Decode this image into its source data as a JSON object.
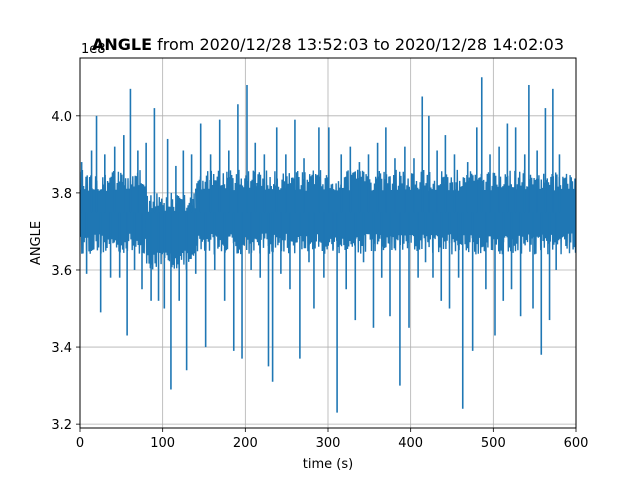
{
  "chart_data": {
    "type": "line",
    "title": {
      "bold": "ANGLE",
      "rest": " from 2020/12/28 13:52:03 to 2020/12/28 14:02:03"
    },
    "xlabel": "time (s)",
    "ylabel": "ANGLE",
    "offset_label": "1e8",
    "xlim": [
      0,
      600
    ],
    "ylim": [
      3.19,
      4.15
    ],
    "xticks": [
      0,
      100,
      200,
      300,
      400,
      500,
      600
    ],
    "yticks": [
      3.2,
      3.4,
      3.6,
      3.8,
      4.0
    ],
    "ytick_labels": [
      "3.2",
      "3.4",
      "3.6",
      "3.8",
      "4.0"
    ],
    "grid": true,
    "series_color": "#1f77b4",
    "band": {
      "segments": [
        {
          "x_start": 0,
          "x_end": 80,
          "low": 3.64,
          "high": 3.86
        },
        {
          "x_start": 80,
          "x_end": 140,
          "low": 3.6,
          "high": 3.8
        },
        {
          "x_start": 140,
          "x_end": 600,
          "low": 3.64,
          "high": 3.86
        }
      ]
    },
    "spikes": [
      {
        "x": 2,
        "y": 3.88
      },
      {
        "x": 8,
        "y": 3.59
      },
      {
        "x": 14,
        "y": 3.91
      },
      {
        "x": 20,
        "y": 4.0
      },
      {
        "x": 25,
        "y": 3.49
      },
      {
        "x": 30,
        "y": 3.9
      },
      {
        "x": 37,
        "y": 3.58
      },
      {
        "x": 42,
        "y": 3.92
      },
      {
        "x": 48,
        "y": 3.58
      },
      {
        "x": 53,
        "y": 3.95
      },
      {
        "x": 57,
        "y": 3.43
      },
      {
        "x": 61,
        "y": 4.07
      },
      {
        "x": 66,
        "y": 3.6
      },
      {
        "x": 70,
        "y": 3.91
      },
      {
        "x": 75,
        "y": 3.55
      },
      {
        "x": 80,
        "y": 3.93
      },
      {
        "x": 86,
        "y": 3.52
      },
      {
        "x": 90,
        "y": 4.02
      },
      {
        "x": 95,
        "y": 3.52
      },
      {
        "x": 102,
        "y": 3.5
      },
      {
        "x": 106,
        "y": 3.94
      },
      {
        "x": 110,
        "y": 3.29
      },
      {
        "x": 116,
        "y": 3.87
      },
      {
        "x": 120,
        "y": 3.52
      },
      {
        "x": 125,
        "y": 3.91
      },
      {
        "x": 129,
        "y": 3.34
      },
      {
        "x": 135,
        "y": 3.9
      },
      {
        "x": 140,
        "y": 3.59
      },
      {
        "x": 146,
        "y": 3.98
      },
      {
        "x": 152,
        "y": 3.4
      },
      {
        "x": 158,
        "y": 3.9
      },
      {
        "x": 163,
        "y": 3.6
      },
      {
        "x": 169,
        "y": 3.99
      },
      {
        "x": 175,
        "y": 3.52
      },
      {
        "x": 180,
        "y": 3.91
      },
      {
        "x": 186,
        "y": 3.39
      },
      {
        "x": 191,
        "y": 4.03
      },
      {
        "x": 196,
        "y": 3.37
      },
      {
        "x": 202,
        "y": 4.08
      },
      {
        "x": 207,
        "y": 3.6
      },
      {
        "x": 212,
        "y": 3.93
      },
      {
        "x": 218,
        "y": 3.58
      },
      {
        "x": 223,
        "y": 3.9
      },
      {
        "x": 228,
        "y": 3.35
      },
      {
        "x": 233,
        "y": 3.31
      },
      {
        "x": 238,
        "y": 3.97
      },
      {
        "x": 243,
        "y": 3.59
      },
      {
        "x": 249,
        "y": 3.9
      },
      {
        "x": 254,
        "y": 3.55
      },
      {
        "x": 260,
        "y": 3.99
      },
      {
        "x": 266,
        "y": 3.37
      },
      {
        "x": 271,
        "y": 3.89
      },
      {
        "x": 277,
        "y": 3.62
      },
      {
        "x": 283,
        "y": 3.5
      },
      {
        "x": 289,
        "y": 3.97
      },
      {
        "x": 295,
        "y": 3.58
      },
      {
        "x": 301,
        "y": 3.97
      },
      {
        "x": 306,
        "y": 3.65
      },
      {
        "x": 311,
        "y": 3.23
      },
      {
        "x": 316,
        "y": 3.9
      },
      {
        "x": 322,
        "y": 3.55
      },
      {
        "x": 327,
        "y": 3.92
      },
      {
        "x": 333,
        "y": 3.47
      },
      {
        "x": 338,
        "y": 3.88
      },
      {
        "x": 343,
        "y": 3.62
      },
      {
        "x": 349,
        "y": 3.9
      },
      {
        "x": 355,
        "y": 3.45
      },
      {
        "x": 360,
        "y": 3.93
      },
      {
        "x": 365,
        "y": 3.58
      },
      {
        "x": 370,
        "y": 3.97
      },
      {
        "x": 375,
        "y": 3.48
      },
      {
        "x": 381,
        "y": 3.89
      },
      {
        "x": 387,
        "y": 3.3
      },
      {
        "x": 393,
        "y": 3.92
      },
      {
        "x": 398,
        "y": 3.45
      },
      {
        "x": 404,
        "y": 3.89
      },
      {
        "x": 409,
        "y": 3.58
      },
      {
        "x": 414,
        "y": 4.05
      },
      {
        "x": 418,
        "y": 3.62
      },
      {
        "x": 422,
        "y": 4.0
      },
      {
        "x": 427,
        "y": 3.58
      },
      {
        "x": 432,
        "y": 3.91
      },
      {
        "x": 437,
        "y": 3.52
      },
      {
        "x": 442,
        "y": 3.95
      },
      {
        "x": 447,
        "y": 3.5
      },
      {
        "x": 453,
        "y": 3.9
      },
      {
        "x": 458,
        "y": 3.58
      },
      {
        "x": 463,
        "y": 3.24
      },
      {
        "x": 469,
        "y": 3.88
      },
      {
        "x": 475,
        "y": 3.39
      },
      {
        "x": 480,
        "y": 3.97
      },
      {
        "x": 486,
        "y": 4.1
      },
      {
        "x": 491,
        "y": 3.55
      },
      {
        "x": 496,
        "y": 3.9
      },
      {
        "x": 502,
        "y": 3.43
      },
      {
        "x": 507,
        "y": 3.92
      },
      {
        "x": 512,
        "y": 3.52
      },
      {
        "x": 517,
        "y": 3.98
      },
      {
        "x": 522,
        "y": 3.55
      },
      {
        "x": 527,
        "y": 3.97
      },
      {
        "x": 533,
        "y": 3.48
      },
      {
        "x": 538,
        "y": 3.9
      },
      {
        "x": 543,
        "y": 4.08
      },
      {
        "x": 548,
        "y": 3.5
      },
      {
        "x": 553,
        "y": 3.91
      },
      {
        "x": 558,
        "y": 3.38
      },
      {
        "x": 563,
        "y": 4.02
      },
      {
        "x": 568,
        "y": 3.47
      },
      {
        "x": 572,
        "y": 4.07
      },
      {
        "x": 576,
        "y": 3.6
      },
      {
        "x": 580,
        "y": 3.9
      }
    ]
  }
}
